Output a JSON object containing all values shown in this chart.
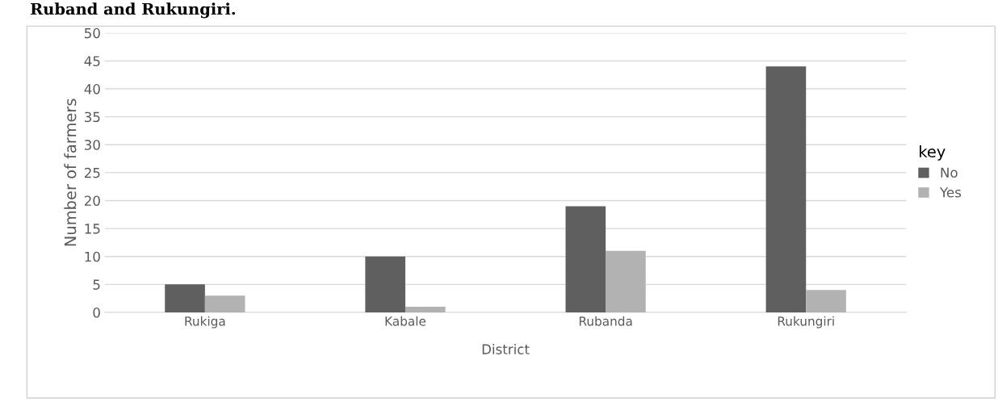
{
  "chart_data": {
    "type": "bar",
    "title": "Ruband and Rukungiri.",
    "xlabel": "District",
    "ylabel": "Number of farmers",
    "legend_title": "key",
    "categories": [
      "Rukiga",
      "Kabale",
      "Rubanda",
      "Rukungiri"
    ],
    "series": [
      {
        "name": "No",
        "color": "#5f5f5f",
        "values": [
          5,
          10,
          19,
          44
        ]
      },
      {
        "name": "Yes",
        "color": "#b2b2b2",
        "values": [
          3,
          1,
          11,
          4
        ]
      }
    ],
    "ylim": [
      0,
      50
    ],
    "yticks": [
      0,
      5,
      10,
      15,
      20,
      25,
      30,
      35,
      40,
      45,
      50
    ],
    "grid": "y",
    "legend": "right"
  }
}
